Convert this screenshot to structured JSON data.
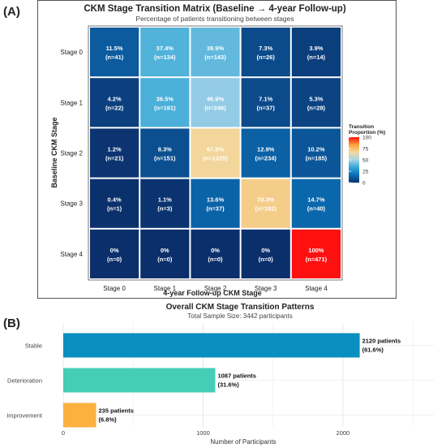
{
  "panels": {
    "a_label": "(A)",
    "b_label": "(B)"
  },
  "chart_data": [
    {
      "type": "heatmap",
      "title": "CKM Stage Transition Matrix (Baseline → 4-year Follow-up)",
      "subtitle": "Percentage of patients transitioning between stages",
      "xlabel": "4-year Follow-up CKM Stage",
      "ylabel": "Baseline CKM Stage",
      "x_categories": [
        "Stage 0",
        "Stage 1",
        "Stage 2",
        "Stage 3",
        "Stage 4"
      ],
      "y_categories": [
        "Stage 0",
        "Stage 1",
        "Stage 2",
        "Stage 3",
        "Stage 4"
      ],
      "percent_labels": [
        [
          "11.5%",
          "37.4%",
          "39.9%",
          "7.3%",
          "3.9%"
        ],
        [
          "4.2%",
          "36.5%",
          "46.9%",
          "7.1%",
          "5.3%"
        ],
        [
          "1.2%",
          "8.3%",
          "67.5%",
          "12.9%",
          "10.2%"
        ],
        [
          "0.4%",
          "1.1%",
          "13.6%",
          "70.3%",
          "14.7%"
        ],
        [
          "0%",
          "0%",
          "0%",
          "0%",
          "100%"
        ]
      ],
      "count_labels": [
        [
          "(n=41)",
          "(n=134)",
          "(n=143)",
          "(n=26)",
          "(n=14)"
        ],
        [
          "(n=22)",
          "(n=191)",
          "(n=246)",
          "(n=37)",
          "(n=28)"
        ],
        [
          "(n=21)",
          "(n=151)",
          "(n=1225)",
          "(n=234)",
          "(n=185)"
        ],
        [
          "(n=1)",
          "(n=3)",
          "(n=37)",
          "(n=192)",
          "(n=40)"
        ],
        [
          "(n=0)",
          "(n=0)",
          "(n=0)",
          "(n=0)",
          "(n=471)"
        ]
      ],
      "values": [
        [
          11.5,
          37.4,
          39.9,
          7.3,
          3.9
        ],
        [
          4.2,
          36.5,
          46.9,
          7.1,
          5.3
        ],
        [
          1.2,
          8.3,
          67.5,
          12.9,
          10.2
        ],
        [
          0.4,
          1.1,
          13.6,
          70.3,
          14.7
        ],
        [
          0,
          0,
          0,
          0,
          100
        ]
      ],
      "legend": {
        "title_lines": [
          "Transition",
          "Proportion (%)"
        ],
        "ticks": [
          "100",
          "75",
          "50",
          "25",
          "0"
        ],
        "range": [
          0,
          100
        ],
        "colors": [
          "#0b2f6b",
          "#0b6fb5",
          "#35a7d6",
          "#a8d3e8",
          "#f2d9a0",
          "#fba13a",
          "#ff1010"
        ],
        "placement": "right"
      }
    },
    {
      "type": "bar",
      "orientation": "horizontal",
      "title": "Overall CKM Stage Transition Patterns",
      "subtitle": "Total Sample Size: 3442 participants",
      "xlabel": "Number of Participants",
      "ylabel": "",
      "categories": [
        "Stable",
        "Deterioration",
        "Improvement"
      ],
      "values": [
        2120,
        1087,
        235
      ],
      "label_line1": [
        "2120 patients",
        "1087 patients",
        "235 patients"
      ],
      "label_line2": [
        "(61.6%)",
        "(31.6%)",
        "(6.8%)"
      ],
      "colors": [
        "#0a8fc0",
        "#45cdb8",
        "#fbb040"
      ],
      "xlim": [
        0,
        2650
      ],
      "x_ticks": [
        "0",
        "1000",
        "2000"
      ],
      "grid": true
    }
  ]
}
